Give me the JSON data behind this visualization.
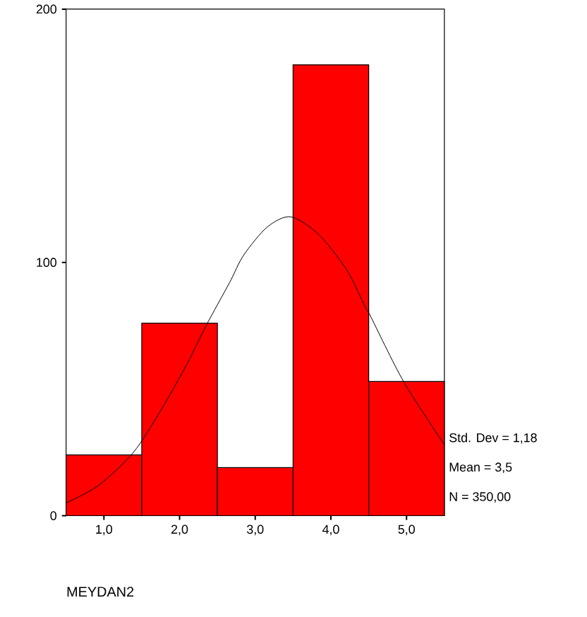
{
  "chart_data": {
    "type": "histogram",
    "xlabel": "MEYDAN2",
    "bins": [
      0.5,
      1.5,
      2.5,
      3.5,
      4.5,
      5.5
    ],
    "series": [
      {
        "color": "#ff0000",
        "values": [
          24,
          76,
          19,
          178,
          53
        ]
      },
      {
        "type": "line",
        "color": "#000000",
        "x": [
          0.5,
          0.93,
          1.39,
          1.76,
          2.1,
          2.35,
          2.66,
          2.85,
          3.16,
          3.47,
          3.84,
          4.21,
          4.46,
          4.52,
          4.96,
          5.5
        ],
        "values": [
          5,
          12,
          25,
          42,
          60,
          75,
          92,
          103,
          114,
          118,
          111,
          97,
          82,
          79,
          53,
          28
        ]
      }
    ],
    "xlim": [
      0.5,
      5.5
    ],
    "ylim": [
      0,
      200
    ],
    "xticks": [
      {
        "value": 1,
        "label": "1,0"
      },
      {
        "value": 2,
        "label": "2,0"
      },
      {
        "value": 3,
        "label": "3,0"
      },
      {
        "value": 4,
        "label": "4,0"
      },
      {
        "value": 5,
        "label": "5,0"
      }
    ],
    "yticks": [
      0,
      100,
      200
    ],
    "annotations": [
      "Std. Dev = 1,18",
      "Mean = 3,5",
      "N = 350,00"
    ]
  }
}
